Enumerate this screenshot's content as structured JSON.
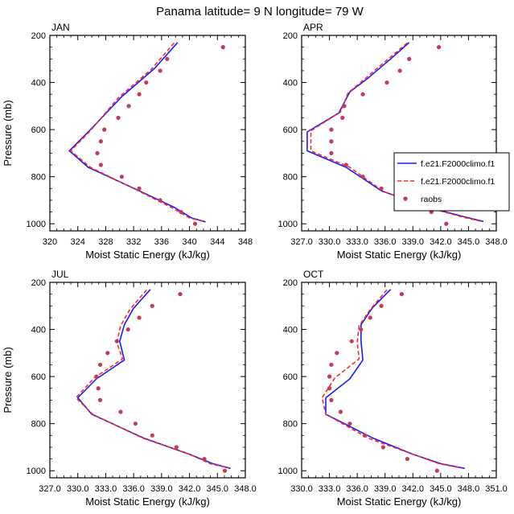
{
  "figure": {
    "title": "Panama  latitude= 9 N longitude= 79 W",
    "colors": {
      "model1": "#1a1aff",
      "model2": "#ff2a1a",
      "obs": "#c23b5a"
    },
    "legend": [
      {
        "label": "f.e21.F2000climo.f1",
        "style": "solid-line",
        "color": "#1a1aff"
      },
      {
        "label": "f.e21.F2000climo.f1",
        "style": "dashed-line",
        "color": "#ff2a1a"
      },
      {
        "label": "raobs",
        "style": "dot",
        "color": "#c23b5a"
      }
    ]
  },
  "chart_data": [
    {
      "type": "line",
      "title": "JAN",
      "xlabel": "Moist Static Energy (kJ/kg)",
      "ylabel": "Pressure (mb)",
      "xlim": [
        320,
        348
      ],
      "ylim": [
        200,
        1030
      ],
      "y_reversed": true,
      "xticks": [
        320,
        324,
        328,
        332,
        336,
        340,
        344,
        348
      ],
      "xtick_labels": [
        "320",
        "324",
        "328",
        "332",
        "336",
        "340",
        "344",
        "348"
      ],
      "yticks": [
        200,
        400,
        600,
        800,
        1000
      ],
      "ytick_labels": [
        "200",
        "400",
        "600",
        "800",
        "1000"
      ],
      "show_xlabel": true,
      "show_ylabel": true,
      "legend": false,
      "series": [
        {
          "key": "model1",
          "style": "solid",
          "points": [
            [
              338.3,
              230
            ],
            [
              335,
              340
            ],
            [
              330.3,
              460
            ],
            [
              325.5,
              610
            ],
            [
              322.8,
              690
            ],
            [
              325.5,
              760
            ],
            [
              332.8,
              860
            ],
            [
              337.8,
              930
            ],
            [
              340.3,
              975
            ],
            [
              342.3,
              992
            ]
          ]
        },
        {
          "key": "model2",
          "style": "dashed",
          "points": [
            [
              337.8,
              232
            ],
            [
              334.5,
              345
            ],
            [
              329.8,
              465
            ],
            [
              325.8,
              605
            ],
            [
              323,
              690
            ],
            [
              325.8,
              760
            ],
            [
              332.8,
              862
            ],
            [
              337.5,
              932
            ],
            [
              340,
              975
            ],
            [
              342,
              990
            ]
          ]
        },
        {
          "key": "obs",
          "style": "dots",
          "points": [
            [
              344.8,
              250
            ],
            [
              336.8,
              300
            ],
            [
              335.8,
              350
            ],
            [
              333.8,
              400
            ],
            [
              332.8,
              450
            ],
            [
              331.3,
              500
            ],
            [
              329.8,
              550
            ],
            [
              327.8,
              600
            ],
            [
              327.3,
              650
            ],
            [
              326.8,
              700
            ],
            [
              327.3,
              750
            ],
            [
              330.3,
              800
            ],
            [
              332.8,
              850
            ],
            [
              335.8,
              900
            ],
            [
              338.8,
              950
            ],
            [
              340.8,
              1000
            ]
          ]
        }
      ]
    },
    {
      "type": "line",
      "title": "APR",
      "xlabel": "Moist Static Energy (kJ/kg)",
      "ylabel": "",
      "xlim": [
        327,
        348
      ],
      "ylim": [
        200,
        1030
      ],
      "y_reversed": true,
      "xticks": [
        327,
        330,
        333,
        336,
        339,
        342,
        345,
        348
      ],
      "xtick_labels": [
        "327.0",
        "330.0",
        "333.0",
        "336.0",
        "339.0",
        "342.0",
        "345.0",
        "348.0"
      ],
      "yticks": [
        200,
        400,
        600,
        800,
        1000
      ],
      "ytick_labels": [
        "200",
        "400",
        "600",
        "800",
        "1000"
      ],
      "show_xlabel": true,
      "show_ylabel": false,
      "legend": true,
      "series": [
        {
          "key": "model1",
          "style": "solid",
          "points": [
            [
              338.6,
              230
            ],
            [
              336.6,
              300
            ],
            [
              334.2,
              380
            ],
            [
              332.2,
              440
            ],
            [
              331,
              530
            ],
            [
              327.6,
              610
            ],
            [
              327.6,
              690
            ],
            [
              331.8,
              760
            ],
            [
              335.6,
              860
            ],
            [
              340.6,
              930
            ],
            [
              344.5,
              970
            ],
            [
              346.6,
              990
            ]
          ]
        },
        {
          "key": "model2",
          "style": "dashed",
          "points": [
            [
              338.4,
              232
            ],
            [
              336.2,
              305
            ],
            [
              333.8,
              385
            ],
            [
              332,
              445
            ],
            [
              331.2,
              525
            ],
            [
              328,
              605
            ],
            [
              328,
              690
            ],
            [
              332.2,
              760
            ],
            [
              335.8,
              862
            ],
            [
              340.6,
              930
            ],
            [
              344.2,
              970
            ],
            [
              346.2,
              988
            ]
          ]
        },
        {
          "key": "obs",
          "style": "dots",
          "points": [
            [
              341.8,
              250
            ],
            [
              338.6,
              300
            ],
            [
              337.6,
              350
            ],
            [
              336.2,
              400
            ],
            [
              333.6,
              450
            ],
            [
              331.6,
              500
            ],
            [
              331.4,
              550
            ],
            [
              330.2,
              600
            ],
            [
              330.2,
              650
            ],
            [
              330.2,
              700
            ],
            [
              331.8,
              750
            ],
            [
              333.6,
              800
            ],
            [
              335.6,
              850
            ],
            [
              338.4,
              900
            ],
            [
              341,
              950
            ],
            [
              342.6,
              1000
            ]
          ]
        }
      ]
    },
    {
      "type": "line",
      "title": "JUL",
      "xlabel": "Moist Static Energy (kJ/kg)",
      "ylabel": "Pressure (mb)",
      "xlim": [
        327,
        348
      ],
      "ylim": [
        200,
        1030
      ],
      "y_reversed": true,
      "xticks": [
        327,
        330,
        333,
        336,
        339,
        342,
        345,
        348
      ],
      "xtick_labels": [
        "327.0",
        "330.0",
        "333.0",
        "336.0",
        "339.0",
        "342.0",
        "345.0",
        "348.0"
      ],
      "yticks": [
        200,
        400,
        600,
        800,
        1000
      ],
      "ytick_labels": [
        "200",
        "400",
        "600",
        "800",
        "1000"
      ],
      "show_xlabel": true,
      "show_ylabel": true,
      "legend": false,
      "series": [
        {
          "key": "model1",
          "style": "solid",
          "points": [
            [
              337.8,
              230
            ],
            [
              336,
              310
            ],
            [
              335,
              380
            ],
            [
              334.5,
              450
            ],
            [
              335,
              530
            ],
            [
              332,
              610
            ],
            [
              330,
              690
            ],
            [
              331.5,
              760
            ],
            [
              337,
              860
            ],
            [
              342,
              930
            ],
            [
              344.5,
              970
            ],
            [
              346.4,
              990
            ]
          ]
        },
        {
          "key": "model2",
          "style": "dashed",
          "points": [
            [
              337.4,
              232
            ],
            [
              335.6,
              315
            ],
            [
              334.6,
              385
            ],
            [
              334.2,
              455
            ],
            [
              334.8,
              525
            ],
            [
              331.8,
              605
            ],
            [
              329.8,
              690
            ],
            [
              331.6,
              760
            ],
            [
              337,
              862
            ],
            [
              342,
              930
            ],
            [
              344.2,
              970
            ],
            [
              346.2,
              988
            ]
          ]
        },
        {
          "key": "obs",
          "style": "dots",
          "points": [
            [
              341,
              250
            ],
            [
              338,
              300
            ],
            [
              336.6,
              350
            ],
            [
              335.4,
              400
            ],
            [
              334.2,
              450
            ],
            [
              333.2,
              500
            ],
            [
              332.4,
              550
            ],
            [
              332,
              600
            ],
            [
              332.2,
              650
            ],
            [
              332.4,
              700
            ],
            [
              334.6,
              750
            ],
            [
              336.2,
              800
            ],
            [
              338,
              850
            ],
            [
              340.6,
              900
            ],
            [
              343.6,
              950
            ],
            [
              345.8,
              1000
            ]
          ]
        }
      ]
    },
    {
      "type": "line",
      "title": "OCT",
      "xlabel": "Moist Static Energy (kJ/kg)",
      "ylabel": "",
      "xlim": [
        330,
        351
      ],
      "ylim": [
        200,
        1030
      ],
      "y_reversed": true,
      "xticks": [
        330,
        333,
        336,
        339,
        342,
        345,
        348,
        351
      ],
      "xtick_labels": [
        "330.0",
        "333.0",
        "336.0",
        "339.0",
        "342.0",
        "345.0",
        "348.0",
        "351.0"
      ],
      "yticks": [
        200,
        400,
        600,
        800,
        1000
      ],
      "ytick_labels": [
        "200",
        "400",
        "600",
        "800",
        "1000"
      ],
      "show_xlabel": true,
      "show_ylabel": false,
      "legend": false,
      "series": [
        {
          "key": "model1",
          "style": "solid",
          "points": [
            [
              339.6,
              230
            ],
            [
              337.6,
              310
            ],
            [
              336.4,
              380
            ],
            [
              336.4,
              450
            ],
            [
              336.6,
              530
            ],
            [
              335.2,
              610
            ],
            [
              332.6,
              690
            ],
            [
              332.6,
              760
            ],
            [
              337.6,
              860
            ],
            [
              342,
              930
            ],
            [
              345,
              970
            ],
            [
              347.6,
              990
            ]
          ]
        },
        {
          "key": "model2",
          "style": "dashed",
          "points": [
            [
              339.2,
              232
            ],
            [
              337.4,
              315
            ],
            [
              336.2,
              385
            ],
            [
              336,
              455
            ],
            [
              336.2,
              525
            ],
            [
              333.6,
              605
            ],
            [
              332.2,
              690
            ],
            [
              332.6,
              760
            ],
            [
              337.2,
              862
            ],
            [
              342,
              930
            ],
            [
              344.8,
              970
            ],
            [
              347.2,
              988
            ]
          ]
        },
        {
          "key": "obs",
          "style": "dots",
          "points": [
            [
              340.8,
              250
            ],
            [
              338.6,
              300
            ],
            [
              337.4,
              350
            ],
            [
              336.4,
              400
            ],
            [
              335.4,
              450
            ],
            [
              333.8,
              500
            ],
            [
              333.2,
              550
            ],
            [
              333,
              600
            ],
            [
              333,
              650
            ],
            [
              333.2,
              700
            ],
            [
              334.2,
              750
            ],
            [
              335.2,
              800
            ],
            [
              336.8,
              850
            ],
            [
              338.8,
              900
            ],
            [
              341.4,
              950
            ],
            [
              344.6,
              1000
            ]
          ]
        }
      ]
    }
  ]
}
